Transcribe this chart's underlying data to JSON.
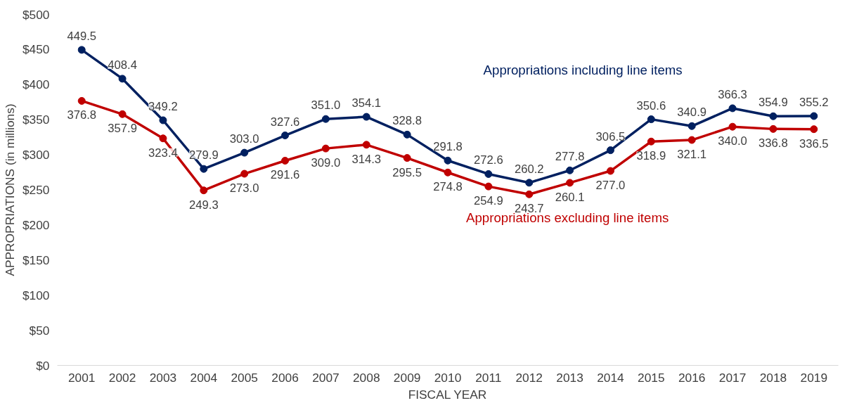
{
  "chart_data": {
    "type": "line",
    "xlabel": "FISCAL YEAR",
    "ylabel": "APPROPRIATIONS (in millions)",
    "categories": [
      "2001",
      "2002",
      "2003",
      "2004",
      "2005",
      "2006",
      "2007",
      "2008",
      "2009",
      "2010",
      "2011",
      "2012",
      "2013",
      "2014",
      "2015",
      "2016",
      "2017",
      "2018",
      "2019"
    ],
    "series": [
      {
        "name": "Appropriations including line items",
        "color": "#002060",
        "values": [
          449.5,
          408.4,
          349.2,
          279.9,
          303.0,
          327.6,
          351.0,
          354.1,
          328.8,
          291.8,
          272.6,
          260.2,
          277.8,
          306.5,
          350.6,
          340.9,
          366.3,
          354.9,
          355.2
        ],
        "value_labels": [
          "449.5",
          "408.4",
          "349.2",
          "279.9",
          "303.0",
          "327.6",
          "351.0",
          "354.1",
          "328.8",
          "291.8",
          "272.6",
          "260.2",
          "277.8",
          "306.5",
          "350.6",
          "340.9",
          "366.3",
          "354.9",
          "355.2"
        ]
      },
      {
        "name": "Appropriations excluding line items",
        "color": "#c00000",
        "values": [
          376.8,
          357.9,
          323.4,
          249.3,
          273.0,
          291.6,
          309.0,
          314.3,
          295.5,
          274.8,
          254.9,
          243.7,
          260.1,
          277.0,
          318.9,
          321.1,
          340.0,
          336.8,
          336.5
        ],
        "value_labels": [
          "376.8",
          "357.9",
          "323.4",
          "249.3",
          "273.0",
          "291.6",
          "309.0",
          "314.3",
          "295.5",
          "274.8",
          "254.9",
          "243.7",
          "260.1",
          "277.0",
          "318.9",
          "321.1",
          "340.0",
          "336.8",
          "336.5"
        ]
      }
    ],
    "ylim": [
      0,
      500
    ],
    "yticks": [
      {
        "value": 0,
        "label": "$0"
      },
      {
        "value": 50,
        "label": "$50"
      },
      {
        "value": 100,
        "label": "$100"
      },
      {
        "value": 150,
        "label": "$150"
      },
      {
        "value": 200,
        "label": "$200"
      },
      {
        "value": 250,
        "label": "$250"
      },
      {
        "value": 300,
        "label": "$300"
      },
      {
        "value": 350,
        "label": "$350"
      },
      {
        "value": 400,
        "label": "$400"
      },
      {
        "value": 450,
        "label": "$450"
      },
      {
        "value": 500,
        "label": "$500"
      }
    ],
    "grid": false,
    "legend": false,
    "marker": "circle",
    "line_style": "solid"
  }
}
